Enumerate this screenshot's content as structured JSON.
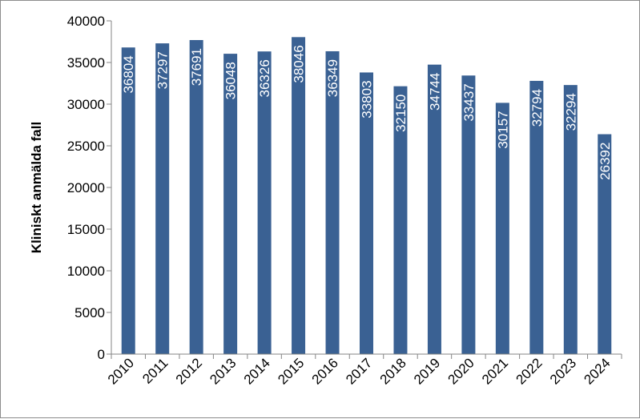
{
  "chart_data": {
    "type": "bar",
    "title": "",
    "xlabel": "",
    "ylabel": "Kliniskt anmälda fall",
    "ylim": [
      0,
      40000
    ],
    "yticks": [
      "0",
      "5000",
      "10000",
      "15000",
      "20000",
      "25000",
      "30000",
      "35000",
      "40000"
    ],
    "categories": [
      "2010",
      "2011",
      "2012",
      "2013",
      "2014",
      "2015",
      "2016",
      "2017",
      "2018",
      "2019",
      "2020",
      "2021",
      "2022",
      "2023",
      "2024"
    ],
    "values": [
      36804,
      37297,
      37691,
      36048,
      36326,
      38046,
      36349,
      33803,
      32150,
      34744,
      33437,
      30157,
      32794,
      32294,
      26392
    ],
    "data_labels": [
      "36804",
      "37297",
      "37691",
      "36048",
      "36326",
      "38046",
      "36349",
      "33803",
      "32150",
      "34744",
      "33437",
      "30157",
      "32794",
      "32294",
      "26392"
    ],
    "bar_color": "#3a6193",
    "grid": false,
    "legend": "none"
  }
}
